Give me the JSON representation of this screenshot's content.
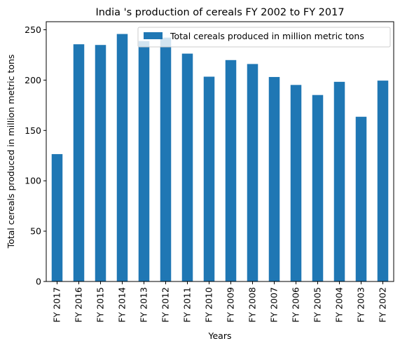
{
  "chart_data": {
    "type": "bar",
    "title": "India 's production of cereals FY 2002 to FY 2017",
    "xlabel": "Years",
    "ylabel": "Total cereals produced in million metric tons",
    "categories": [
      "FY 2017",
      "FY 2016",
      "FY 2015",
      "FY 2014",
      "FY 2013",
      "FY 2012",
      "FY 2011",
      "FY 2010",
      "FY 2009",
      "FY 2008",
      "FY 2007",
      "FY 2006",
      "FY 2005",
      "FY 2004",
      "FY 2003",
      "FY 2002"
    ],
    "series": [
      {
        "name": "Total cereals produced in million metric tons",
        "values": [
          126.5,
          235.6,
          234.9,
          245.8,
          238.8,
          242.2,
          226.3,
          203.4,
          219.9,
          216.0,
          203.1,
          195.2,
          185.2,
          198.3,
          163.6,
          199.5
        ]
      }
    ],
    "ylim": [
      0,
      258
    ],
    "yticks": [
      0,
      50,
      100,
      150,
      200,
      250
    ],
    "legend_position": "top-right",
    "grid": false,
    "bar_color": "#1f77b4"
  }
}
